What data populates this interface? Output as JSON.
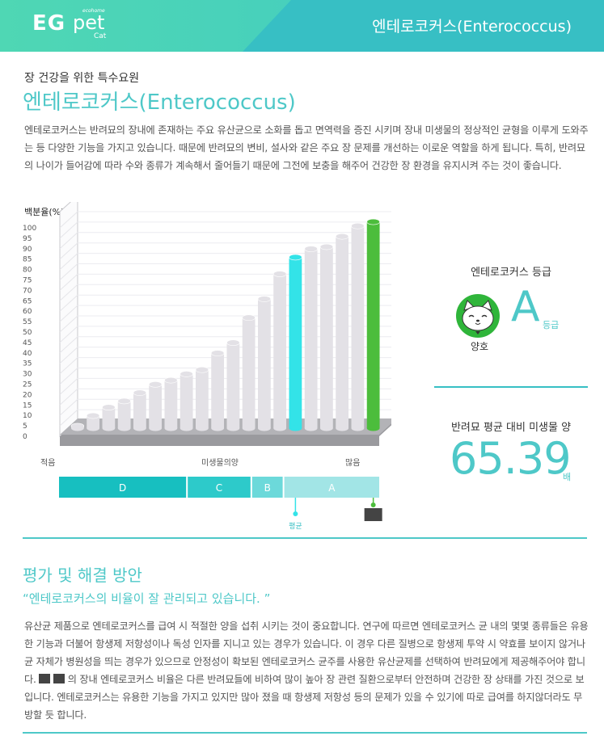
{
  "header": {
    "logo_eg": "EG",
    "logo_pet": "pet",
    "logo_cat": "Cat",
    "logo_brand": "ecohome",
    "title": "엔테로코커스(Enterococcus)"
  },
  "intro": {
    "subtitle": "장 건강을 위한 특수요원",
    "title": "엔테로코커스(Enterococcus)",
    "body": "엔테로코커스는 반려묘의 장내에 존재하는 주요 유산균으로 소화를 돕고 면역력을 증진 시키며 장내 미생물의 정상적인 균형을 이루게 도와주는 등 다양한 기능을 가지고 있습니다. 때문에 반려묘의 변비, 설사와 같은 주요 장 문제를 개선하는 이로운 역할을 하게 됩니다. 특히, 반려묘의 나이가 들어감에 따라 수와 종류가 계속해서 줄어들기 때문에 그전에 보충을 해주어 건강한 장 환경을 유지시켜 주는 것이 좋습니다."
  },
  "chart_data": {
    "type": "bar",
    "ylabel": "백분율(%)",
    "xlabel": "미생물의양",
    "x_left_label": "적음",
    "x_right_label": "많음",
    "ylim": [
      0,
      100
    ],
    "yticks": [
      0,
      5,
      10,
      15,
      20,
      25,
      30,
      35,
      40,
      45,
      50,
      55,
      60,
      65,
      70,
      75,
      80,
      85,
      90,
      95,
      100
    ],
    "values": [
      1,
      6,
      10,
      13,
      17,
      21,
      23,
      26,
      28,
      36,
      41,
      53,
      62,
      74,
      82,
      86,
      87,
      92,
      97,
      99
    ],
    "highlight": {
      "average_index": 14,
      "self_index": 19,
      "average_color": "#33e3e8",
      "self_color": "#4cbd3c",
      "default_color": "#e3e1e6"
    },
    "grades": [
      {
        "label": "D",
        "start": 0,
        "end": 8,
        "color": "#17bfc0"
      },
      {
        "label": "C",
        "start": 8,
        "end": 12,
        "color": "#2dcaca"
      },
      {
        "label": "B",
        "start": 12,
        "end": 14,
        "color": "#6cd9da"
      },
      {
        "label": "A",
        "start": 14,
        "end": 20,
        "color": "#a2e5e6"
      }
    ],
    "average_label": "평균"
  },
  "grade_panel": {
    "title": "엔테로코커스 등급",
    "grade": "A",
    "grade_suffix": "등급",
    "status": "양호"
  },
  "ratio_panel": {
    "title": "반려묘 평균 대비 미생물 양",
    "value": "65.39",
    "unit": "배"
  },
  "evaluation": {
    "title": "평가 및 해결 방안",
    "quote": "“엔테로코커스의 비율이 잘 관리되고 있습니다. ”",
    "body_part1": "유산균 제품으로 엔테로코커스를 급여 시 적절한 양을 섭취 시키는 것이 중요합니다. 연구에 따르면 엔테로코커스 균 내의 몇몇 종류들은 유용한 기능과 더불어 항생제 저항성이나 독성 인자를 지니고 있는 경우가 있습니다. 이 경우 다른 질병으로 항생제 투약 시 약효를 보이지 않거나 균 자체가 병원성을 띄는 경우가 있으므로 안정성이 확보된 엔테로코커스 균주를 사용한 유산균제를 선택하여 반려묘에게 제공해주어야 합니다.",
    "body_part2": "의 장내 엔테로코커스 비율은 다른 반려묘들에 비하여 많이 높아 장 관련 질환으로부터 안전하며 건강한 장 상태를 가진 것으로 보입니다. 엔테로코커스는 유용한 기능을 가지고 있지만 많아 졌을 때 항생제 저항성 등의 문제가 있을 수 있기에 따로 급여를 하지않더라도 무방할 듯 합니다."
  }
}
